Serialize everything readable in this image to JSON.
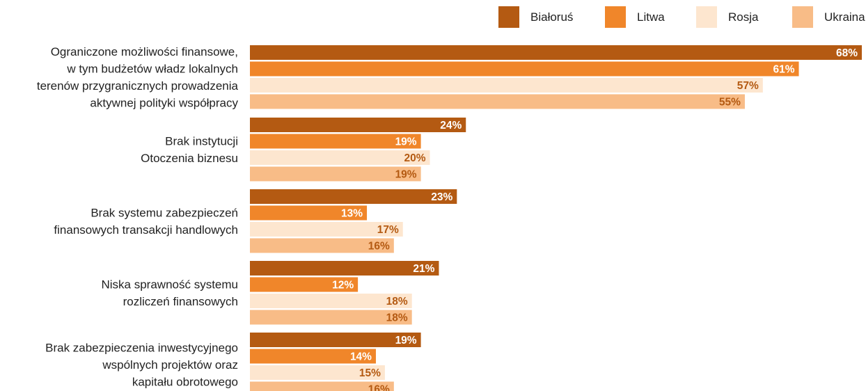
{
  "chart_data": {
    "type": "bar",
    "orientation": "horizontal",
    "legend_position": "top-right",
    "grid": false,
    "xlim": [
      0,
      68
    ],
    "categories": [
      [
        "Ograniczone możliwości finansowe,",
        "w tym budżetów władz lokalnych",
        "terenów przygranicznych prowadzenia",
        "aktywnej polityki współpracy"
      ],
      [
        "Brak instytucji",
        "Otoczenia biznesu"
      ],
      [
        "Brak systemu zabezpieczeń",
        "finansowych transakcji handlowych"
      ],
      [
        "Niska sprawność systemu",
        "rozliczeń finansowych"
      ],
      [
        "Brak zabezpieczenia inwestycyjnego",
        "wspólnych projektów oraz",
        "kapitału obrotowego"
      ]
    ],
    "series": [
      {
        "name": "Białoruś",
        "color": "#b45a12",
        "label_color": "#ffffff",
        "values": [
          68,
          24,
          23,
          21,
          19
        ]
      },
      {
        "name": "Litwa",
        "color": "#f0862a",
        "label_color": "#ffffff",
        "values": [
          61,
          19,
          13,
          12,
          14
        ]
      },
      {
        "name": "Rosja",
        "color": "#fde6cf",
        "label_color": "#b45a12",
        "values": [
          57,
          20,
          17,
          18,
          15
        ]
      },
      {
        "name": "Ukraina",
        "color": "#f8bc87",
        "label_color": "#b45a12",
        "values": [
          55,
          19,
          16,
          18,
          16
        ]
      }
    ],
    "value_suffix": "%"
  }
}
